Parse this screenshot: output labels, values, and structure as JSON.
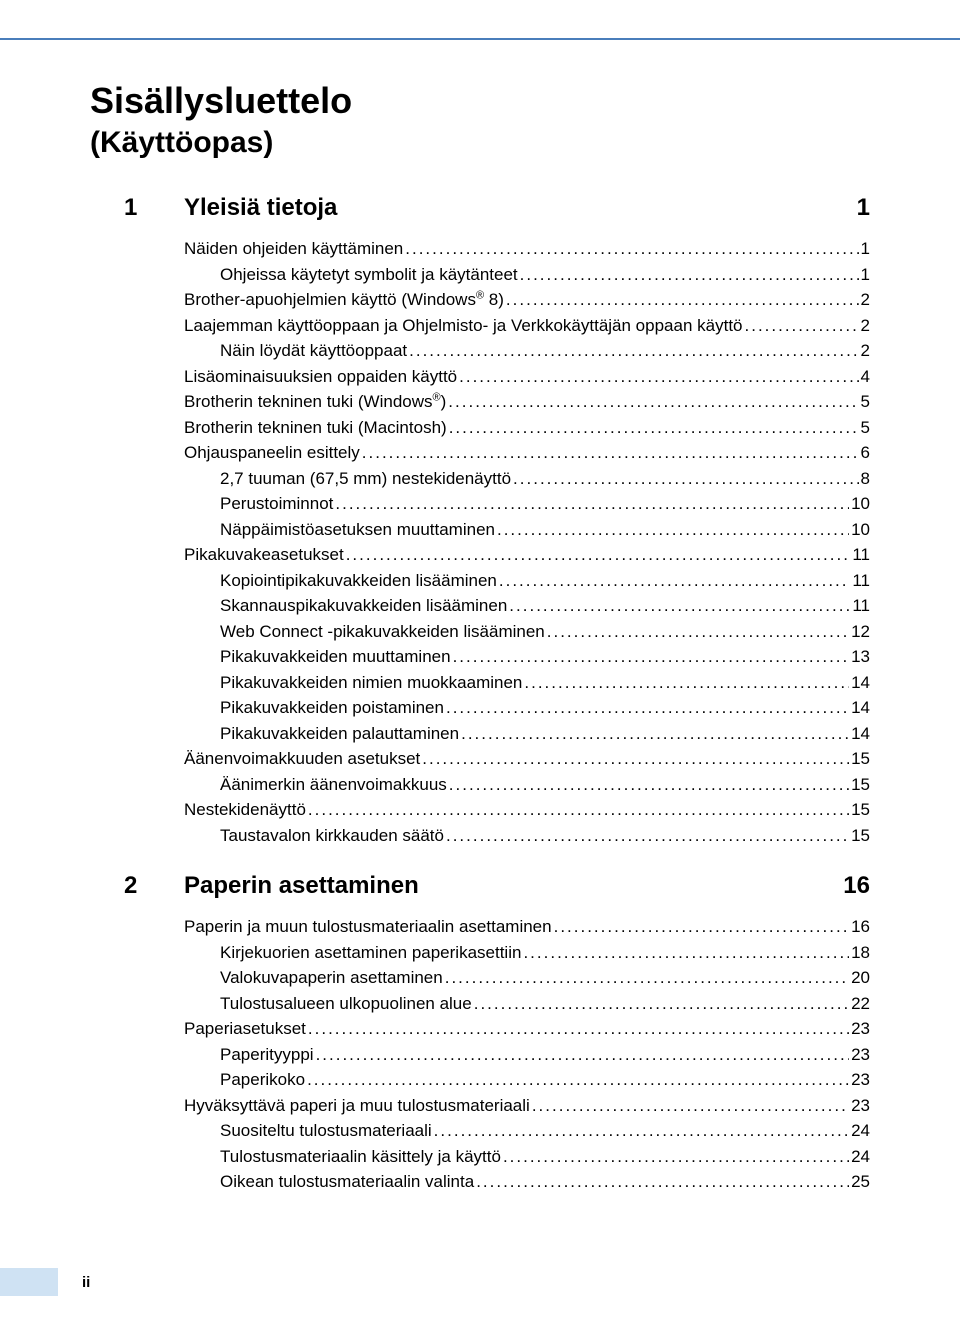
{
  "colors": {
    "top_border": "#4a7ebb",
    "footer_bar_bg": "#cfe2f3",
    "text": "#000000",
    "bg": "#ffffff"
  },
  "typography": {
    "title_main_size": 36,
    "title_sub_size": 30,
    "chapter_size": 24,
    "entry_size": 17,
    "footer_size": 15
  },
  "title_main": "Sisällysluettelo",
  "title_sub": "(Käyttöopas)",
  "footer_page": "ii",
  "chapters": [
    {
      "num": "1",
      "title": "Yleisiä tietoja",
      "page": "1",
      "entries": [
        {
          "label": "Näiden ohjeiden käyttäminen",
          "page": "1",
          "indent": 0
        },
        {
          "label": "Ohjeissa käytetyt symbolit ja käytänteet",
          "page": "1",
          "indent": 1
        },
        {
          "label_pre": "Brother-apuohjelmien käyttö (Windows",
          "sup": "®",
          "label_post": " 8)",
          "page": "2",
          "indent": 0
        },
        {
          "label": "Laajemman käyttöoppaan ja Ohjelmisto- ja Verkkokäyttäjän oppaan käyttö",
          "page": "2",
          "indent": 0
        },
        {
          "label": "Näin löydät käyttöoppaat",
          "page": "2",
          "indent": 1
        },
        {
          "label": "Lisäominaisuuksien oppaiden käyttö",
          "page": "4",
          "indent": 0
        },
        {
          "label_pre": "Brotherin tekninen tuki (Windows",
          "sup": "®",
          "label_post": ")",
          "page": "5",
          "indent": 0
        },
        {
          "label": "Brotherin tekninen tuki (Macintosh)",
          "page": "5",
          "indent": 0
        },
        {
          "label": "Ohjauspaneelin esittely",
          "page": "6",
          "indent": 0
        },
        {
          "label": "2,7 tuuman (67,5 mm) nestekidenäyttö",
          "page": "8",
          "indent": 1
        },
        {
          "label": "Perustoiminnot",
          "page": "10",
          "indent": 1
        },
        {
          "label": "Näppäimistöasetuksen muuttaminen",
          "page": "10",
          "indent": 1
        },
        {
          "label": "Pikakuvakeasetukset",
          "page": "11",
          "indent": 0
        },
        {
          "label": "Kopiointipikakuvakkeiden lisääminen",
          "page": "11",
          "indent": 1
        },
        {
          "label": "Skannauspikakuvakkeiden lisääminen",
          "page": "11",
          "indent": 1
        },
        {
          "label": "Web Connect -pikakuvakkeiden lisääminen",
          "page": "12",
          "indent": 1
        },
        {
          "label": "Pikakuvakkeiden muuttaminen",
          "page": "13",
          "indent": 1
        },
        {
          "label": "Pikakuvakkeiden nimien muokkaaminen",
          "page": "14",
          "indent": 1
        },
        {
          "label": "Pikakuvakkeiden poistaminen",
          "page": "14",
          "indent": 1
        },
        {
          "label": "Pikakuvakkeiden palauttaminen",
          "page": "14",
          "indent": 1
        },
        {
          "label": "Äänenvoimakkuuden asetukset",
          "page": "15",
          "indent": 0
        },
        {
          "label": "Äänimerkin äänenvoimakkuus",
          "page": "15",
          "indent": 1
        },
        {
          "label": "Nestekidenäyttö",
          "page": "15",
          "indent": 0
        },
        {
          "label": "Taustavalon kirkkauden säätö",
          "page": "15",
          "indent": 1
        }
      ]
    },
    {
      "num": "2",
      "title": "Paperin asettaminen",
      "page": "16",
      "entries": [
        {
          "label": "Paperin ja muun tulostusmateriaalin asettaminen",
          "page": "16",
          "indent": 0
        },
        {
          "label": "Kirjekuorien asettaminen paperikasettiin",
          "page": "18",
          "indent": 1
        },
        {
          "label": "Valokuvapaperin asettaminen",
          "page": "20",
          "indent": 1
        },
        {
          "label": "Tulostusalueen ulkopuolinen alue",
          "page": "22",
          "indent": 1
        },
        {
          "label": "Paperiasetukset",
          "page": "23",
          "indent": 0
        },
        {
          "label": "Paperityyppi",
          "page": "23",
          "indent": 1
        },
        {
          "label": "Paperikoko",
          "page": "23",
          "indent": 1
        },
        {
          "label": "Hyväksyttävä paperi ja muu tulostusmateriaali",
          "page": "23",
          "indent": 0
        },
        {
          "label": "Suositeltu tulostusmateriaali",
          "page": "24",
          "indent": 1
        },
        {
          "label": "Tulostusmateriaalin käsittely ja käyttö",
          "page": "24",
          "indent": 1
        },
        {
          "label": "Oikean tulostusmateriaalin valinta",
          "page": "25",
          "indent": 1
        }
      ]
    }
  ]
}
